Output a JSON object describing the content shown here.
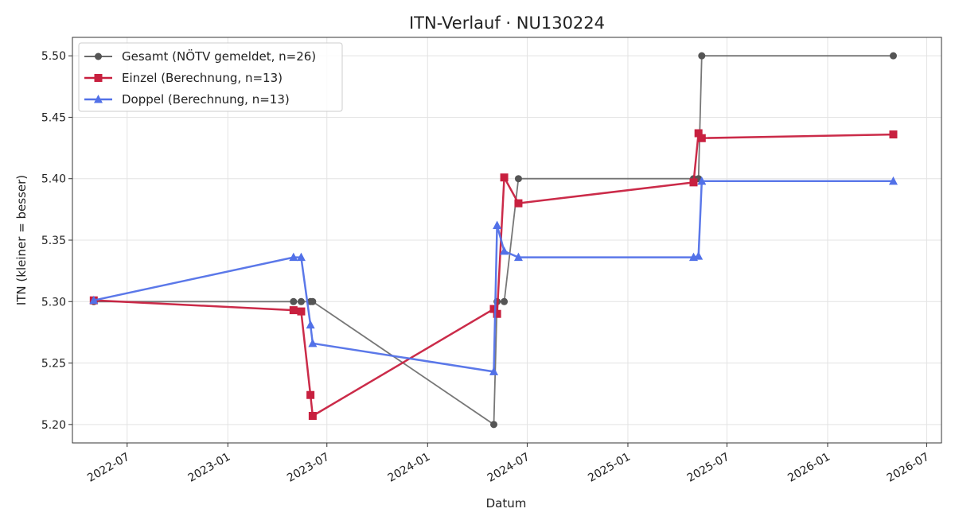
{
  "chart_data": {
    "type": "line",
    "title": "ITN-Verlauf · NU130224",
    "xlabel": "Datum",
    "ylabel": "ITN  (kleiner = besser)",
    "x_ticks": [
      "2022-07",
      "2023-01",
      "2023-07",
      "2024-01",
      "2024-07",
      "2025-01",
      "2025-07",
      "2026-01",
      "2026-07"
    ],
    "y_ticks": [
      "5.20",
      "5.25",
      "5.30",
      "5.35",
      "5.40",
      "5.45",
      "5.50"
    ],
    "xlim": [
      "2022-03-23",
      "2026-07-28"
    ],
    "ylim": [
      5.185,
      5.515
    ],
    "grid": true,
    "legend_position": "top-left",
    "series": [
      {
        "name": "Gesamt (NÖTV gemeldet, n=26)",
        "color": "#555555",
        "marker": "circle",
        "points": [
          [
            "2022-05-01",
            5.3
          ],
          [
            "2023-05-01",
            5.3
          ],
          [
            "2023-05-15",
            5.3
          ],
          [
            "2023-06-01",
            5.3
          ],
          [
            "2023-06-05",
            5.3
          ],
          [
            "2024-05-01",
            5.2
          ],
          [
            "2024-05-07",
            5.3
          ],
          [
            "2024-05-20",
            5.3
          ],
          [
            "2024-06-15",
            5.4
          ],
          [
            "2025-05-01",
            5.4
          ],
          [
            "2025-05-10",
            5.4
          ],
          [
            "2025-05-16",
            5.5
          ],
          [
            "2026-05-01",
            5.5
          ]
        ]
      },
      {
        "name": "Einzel (Berechnung, n=13)",
        "color": "#c8203f",
        "marker": "square",
        "points": [
          [
            "2022-05-01",
            5.301
          ],
          [
            "2023-05-01",
            5.293
          ],
          [
            "2023-05-15",
            5.292
          ],
          [
            "2023-06-01",
            5.224
          ],
          [
            "2023-06-05",
            5.207
          ],
          [
            "2024-05-01",
            5.294
          ],
          [
            "2024-05-07",
            5.29
          ],
          [
            "2024-05-20",
            5.401
          ],
          [
            "2024-06-15",
            5.38
          ],
          [
            "2025-05-01",
            5.397
          ],
          [
            "2025-05-10",
            5.437
          ],
          [
            "2025-05-16",
            5.433
          ],
          [
            "2026-05-01",
            5.436
          ]
        ]
      },
      {
        "name": "Doppel (Berechnung, n=13)",
        "color": "#5271e8",
        "marker": "triangle",
        "points": [
          [
            "2022-05-01",
            5.301
          ],
          [
            "2023-05-01",
            5.336
          ],
          [
            "2023-05-15",
            5.336
          ],
          [
            "2023-06-01",
            5.281
          ],
          [
            "2023-06-05",
            5.266
          ],
          [
            "2024-05-01",
            5.243
          ],
          [
            "2024-05-07",
            5.362
          ],
          [
            "2024-05-20",
            5.341
          ],
          [
            "2024-06-15",
            5.336
          ],
          [
            "2025-05-01",
            5.336
          ],
          [
            "2025-05-10",
            5.337
          ],
          [
            "2025-05-16",
            5.398
          ],
          [
            "2026-05-01",
            5.398
          ]
        ]
      }
    ]
  }
}
